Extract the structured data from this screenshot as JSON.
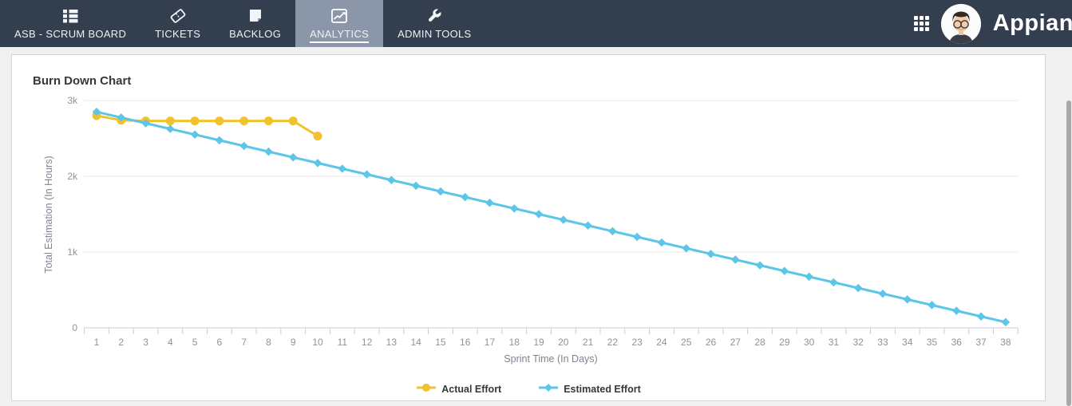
{
  "nav": {
    "tabs": [
      {
        "label": "ASB - SCRUM BOARD",
        "active": false
      },
      {
        "label": "TICKETS",
        "active": false
      },
      {
        "label": "BACKLOG",
        "active": false
      },
      {
        "label": "ANALYTICS",
        "active": true
      },
      {
        "label": "ADMIN TOOLS",
        "active": false
      }
    ],
    "brand": "Appian",
    "colors": {
      "bg": "#333e4f",
      "active_tab_bg": "#8b97a8"
    }
  },
  "chart_data": {
    "type": "line",
    "title": "Burn Down Chart",
    "xlabel": "Sprint Time (In Days)",
    "ylabel": "Total Estimation (In Hours)",
    "x": [
      1,
      2,
      3,
      4,
      5,
      6,
      7,
      8,
      9,
      10,
      11,
      12,
      13,
      14,
      15,
      16,
      17,
      18,
      19,
      20,
      21,
      22,
      23,
      24,
      25,
      26,
      27,
      28,
      29,
      30,
      31,
      32,
      33,
      34,
      35,
      36,
      37,
      38
    ],
    "ylim": [
      0,
      3000
    ],
    "yticks": {
      "values": [
        0,
        1000,
        2000,
        3000
      ],
      "labels": [
        "0",
        "1k",
        "2k",
        "3k"
      ]
    },
    "grid": "horizontal",
    "legend_position": "bottom-center",
    "series": [
      {
        "name": "Actual Effort",
        "color": "#f1c22d",
        "marker": "circle",
        "x": [
          1,
          2,
          3,
          4,
          5,
          6,
          7,
          8,
          9,
          10
        ],
        "values": [
          2800,
          2740,
          2730,
          2730,
          2730,
          2730,
          2730,
          2730,
          2730,
          2530
        ]
      },
      {
        "name": "Estimated Effort",
        "color": "#5cc5e8",
        "marker": "diamond",
        "x": [
          1,
          2,
          3,
          4,
          5,
          6,
          7,
          8,
          9,
          10,
          11,
          12,
          13,
          14,
          15,
          16,
          17,
          18,
          19,
          20,
          21,
          22,
          23,
          24,
          25,
          26,
          27,
          28,
          29,
          30,
          31,
          32,
          33,
          34,
          35,
          36,
          37,
          38
        ],
        "values": [
          2850,
          2775,
          2700,
          2625,
          2550,
          2475,
          2400,
          2325,
          2250,
          2175,
          2100,
          2025,
          1950,
          1875,
          1800,
          1725,
          1650,
          1575,
          1500,
          1425,
          1350,
          1275,
          1200,
          1125,
          1050,
          975,
          900,
          825,
          750,
          675,
          600,
          525,
          450,
          375,
          300,
          225,
          150,
          75
        ]
      }
    ]
  }
}
